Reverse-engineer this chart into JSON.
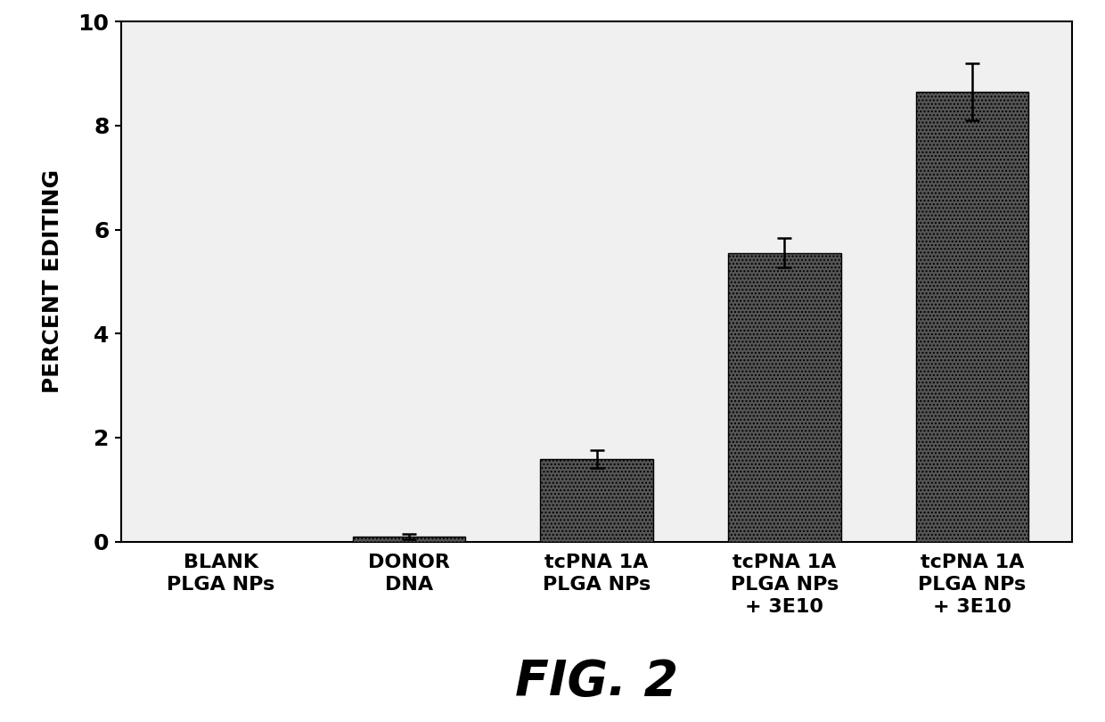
{
  "categories": [
    "BLANK\nPLGA NPs",
    "DONOR\nDNA",
    "tcPNA 1A\nPLGA NPs",
    "tcPNA 1A\nPLGA NPs\n+ 3E10",
    "tcPNA 1A\nPLGA NPs\n+ 3E10"
  ],
  "values": [
    0.0,
    0.1,
    1.58,
    5.55,
    8.65
  ],
  "errors": [
    0.0,
    0.05,
    0.17,
    0.28,
    0.55
  ],
  "bar_color": "#555555",
  "bar_hatch": "....",
  "ylabel": "PERCENT EDITING",
  "ylim": [
    0,
    10
  ],
  "yticks": [
    0,
    2,
    4,
    6,
    8,
    10
  ],
  "fig_caption": "FIG. 2",
  "background_color": "#ffffff",
  "plot_bg_color": "#f0f0f0",
  "bar_edge_color": "#000000",
  "bar_width": 0.6,
  "caption_fontsize": 40,
  "label_fontsize": 16,
  "tick_fontsize": 18,
  "ylabel_fontsize": 18
}
